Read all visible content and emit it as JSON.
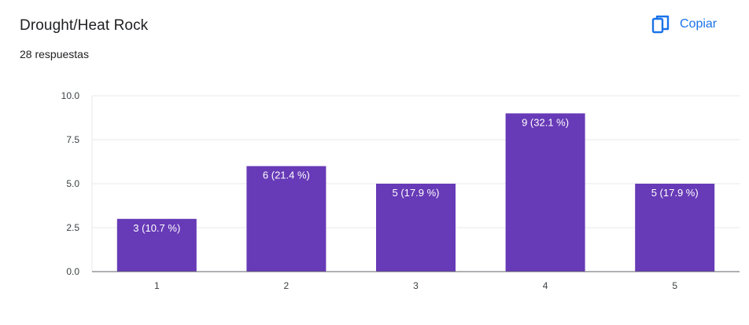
{
  "header": {
    "title": "Drought/Heat Rock",
    "response_count": "28 respuestas",
    "copy_label": "Copiar",
    "copy_icon": "copy-icon"
  },
  "colors": {
    "bar": "#673ab7",
    "accent": "#1a73e8",
    "grid": "#e8e8e8",
    "axis": "#5f6368"
  },
  "chart_data": {
    "type": "bar",
    "categories": [
      "1",
      "2",
      "3",
      "4",
      "5"
    ],
    "values": [
      3,
      6,
      5,
      9,
      5
    ],
    "data_labels": [
      "3 (10.7 %)",
      "6 (21.4 %)",
      "5 (17.9 %)",
      "9 (32.1 %)",
      "5 (17.9 %)"
    ],
    "ylim": [
      0,
      10
    ],
    "yticks": [
      "0.0",
      "2.5",
      "5.0",
      "7.5",
      "10.0"
    ],
    "ytick_values": [
      0,
      2.5,
      5,
      7.5,
      10
    ],
    "grid": true,
    "legend": "none"
  }
}
